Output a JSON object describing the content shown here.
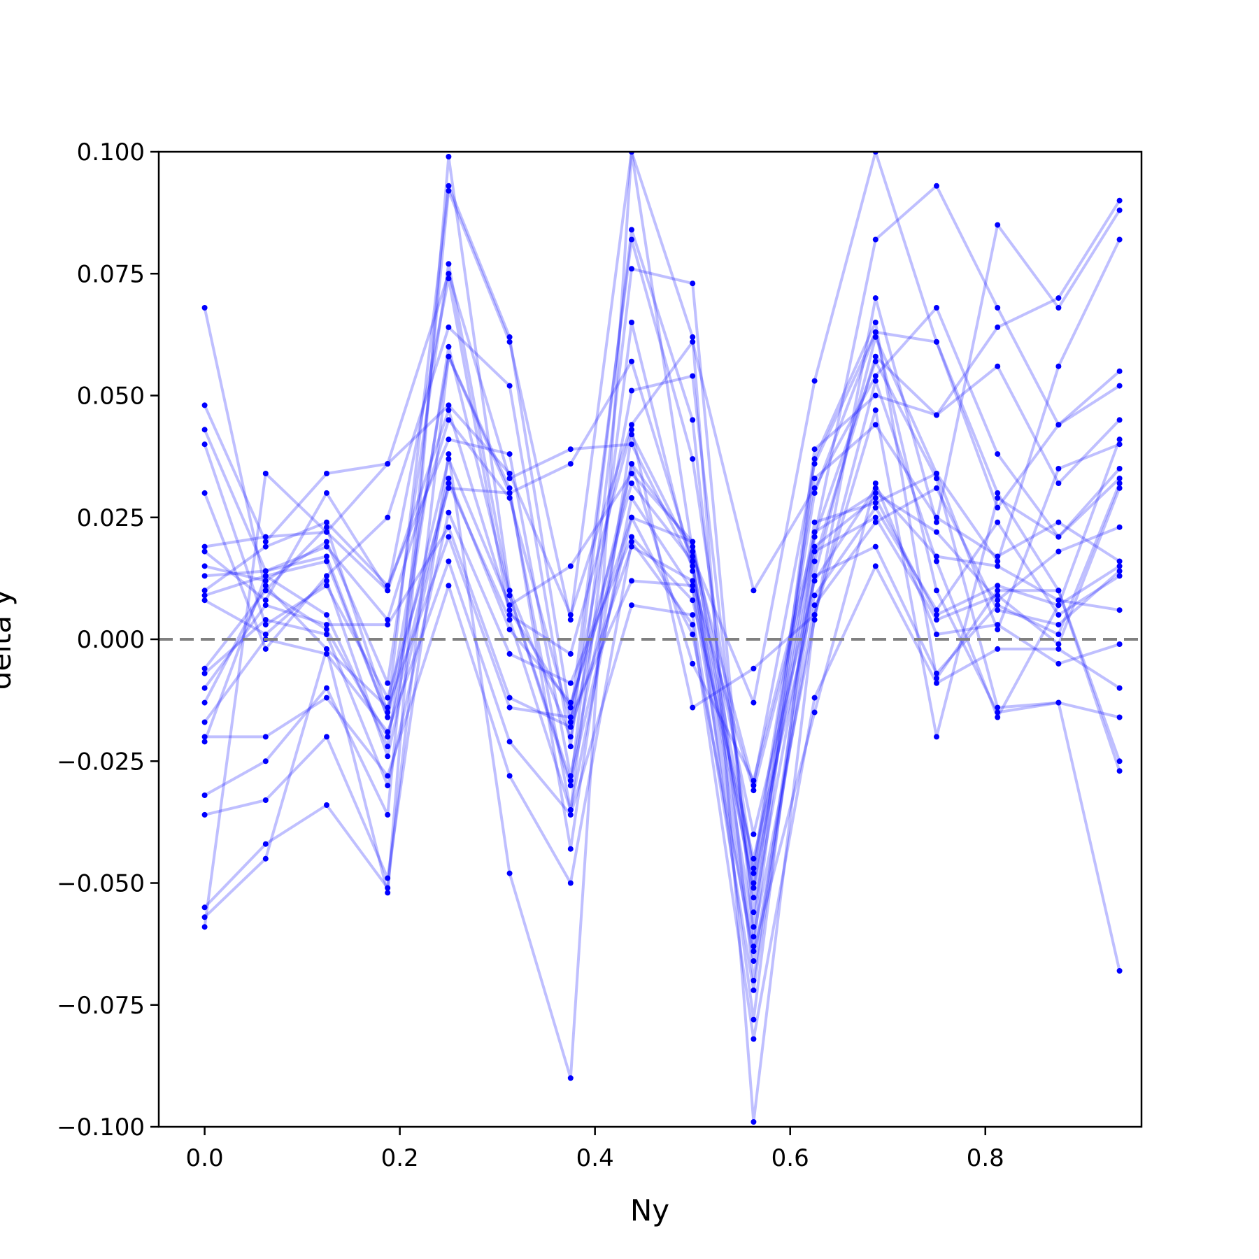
{
  "chart_data": {
    "type": "line",
    "xlabel": "Ny",
    "ylabel": "delta y",
    "xlim": [
      -0.047,
      0.96
    ],
    "ylim": [
      -0.1,
      0.1
    ],
    "x_ticks": [
      0.0,
      0.2,
      0.4,
      0.6,
      0.8
    ],
    "x_tick_labels": [
      "0.0",
      "0.2",
      "0.4",
      "0.6",
      "0.8"
    ],
    "y_ticks": [
      -0.1,
      -0.075,
      -0.05,
      -0.025,
      0.0,
      0.025,
      0.05,
      0.075,
      0.1
    ],
    "y_tick_labels": [
      "−0.100",
      "−0.075",
      "−0.050",
      "−0.025",
      "0.000",
      "0.025",
      "0.050",
      "0.075",
      "0.100"
    ],
    "reference_line": {
      "y": 0.0,
      "style": "dashed",
      "color": "#808080"
    },
    "grid": false,
    "legend": "none",
    "line_color": "#0000ff",
    "x": [
      0.0,
      0.0625,
      0.125,
      0.1875,
      0.25,
      0.3125,
      0.375,
      0.4375,
      0.5,
      0.5625,
      0.625,
      0.6875,
      0.75,
      0.8125,
      0.875,
      0.9375
    ],
    "series": [
      {
        "values": [
          0.068,
          0.01,
          0.023,
          -0.015,
          0.093,
          0.062,
          -0.016,
          0.082,
          0.037,
          -0.048,
          0.03,
          0.063,
          0.061,
          0.027,
          0.044,
          0.052
        ]
      },
      {
        "values": [
          0.048,
          0.02,
          0.034,
          0.036,
          0.075,
          0.033,
          0.039,
          0.04,
          0.015,
          -0.05,
          0.024,
          0.028,
          0.034,
          0.002,
          0.035,
          0.04
        ]
      },
      {
        "values": [
          0.043,
          0.014,
          0.017,
          -0.016,
          0.058,
          0.03,
          -0.035,
          0.065,
          0.014,
          -0.063,
          0.037,
          0.065,
          -0.008,
          0.01,
          0.01,
          -0.027
        ]
      },
      {
        "values": [
          0.04,
          0.003,
          0.011,
          -0.012,
          0.031,
          0.03,
          0.036,
          0.057,
          0.016,
          -0.078,
          0.021,
          0.082,
          0.093,
          0.068,
          0.044,
          0.055
        ]
      },
      {
        "values": [
          0.03,
          -0.002,
          0.013,
          0.025,
          0.064,
          0.052,
          -0.022,
          0.084,
          0.045,
          -0.07,
          0.016,
          0.058,
          0.046,
          0.056,
          0.032,
          0.045
        ]
      },
      {
        "values": [
          0.019,
          0.021,
          0.022,
          0.036,
          0.048,
          0.034,
          0.005,
          0.044,
          0.061,
          0.01,
          0.031,
          0.054,
          0.068,
          0.038,
          0.021,
          0.035
        ]
      },
      {
        "values": [
          0.018,
          0.008,
          0.03,
          0.01,
          0.047,
          0.006,
          -0.014,
          0.032,
          0.016,
          -0.059,
          0.039,
          0.05,
          0.046,
          0.064,
          0.07,
          0.09
        ]
      },
      {
        "values": [
          0.015,
          0.012,
          0.02,
          -0.009,
          0.077,
          0.009,
          -0.03,
          0.076,
          0.073,
          -0.061,
          0.004,
          0.07,
          0.024,
          0.085,
          0.068,
          0.088
        ]
      },
      {
        "values": [
          0.013,
          0.014,
          0.019,
          0.004,
          0.045,
          0.029,
          -0.017,
          0.051,
          0.054,
          -0.056,
          0.013,
          0.062,
          0.034,
          0.016,
          0.056,
          0.082
        ]
      },
      {
        "values": [
          0.01,
          0.019,
          0.024,
          0.011,
          0.041,
          0.038,
          -0.028,
          0.036,
          0.019,
          -0.047,
          0.033,
          0.044,
          0.025,
          0.017,
          0.024,
          0.016
        ]
      },
      {
        "values": [
          0.009,
          0.013,
          0.016,
          -0.016,
          0.037,
          0.007,
          0.015,
          0.034,
          0.02,
          -0.053,
          0.022,
          0.03,
          0.022,
          0.008,
          0.018,
          0.023
        ]
      },
      {
        "values": [
          0.008,
          0.001,
          0.012,
          -0.024,
          0.032,
          0.004,
          -0.035,
          0.029,
          0.01,
          -0.066,
          0.007,
          0.024,
          0.031,
          0.006,
          0.003,
          0.014
        ]
      },
      {
        "values": [
          -0.006,
          0.01,
          0.002,
          -0.02,
          0.033,
          0.002,
          -0.013,
          0.025,
          0.02,
          -0.04,
          0.012,
          0.031,
          0.017,
          0.015,
          0.008,
          0.006
        ]
      },
      {
        "values": [
          -0.007,
          0.004,
          0.001,
          -0.03,
          0.026,
          -0.003,
          -0.009,
          0.021,
          0.008,
          -0.045,
          0.009,
          0.027,
          0.006,
          0.024,
          0.005,
          0.013
        ]
      },
      {
        "values": [
          -0.01,
          0.007,
          0.003,
          0.003,
          0.023,
          -0.012,
          -0.018,
          0.019,
          0.012,
          -0.031,
          0.019,
          0.029,
          0.005,
          0.011,
          0.007,
          0.015
        ]
      },
      {
        "values": [
          -0.013,
          0.011,
          -0.002,
          -0.014,
          0.021,
          -0.014,
          -0.016,
          0.012,
          0.011,
          -0.051,
          0.018,
          0.025,
          0.004,
          0.009,
          -0.001,
          0.031
        ]
      },
      {
        "values": [
          -0.017,
          0.0,
          -0.003,
          -0.019,
          0.016,
          -0.021,
          -0.036,
          0.007,
          0.005,
          -0.072,
          0.013,
          0.019,
          -0.007,
          0.007,
          0.001,
          0.032
        ]
      },
      {
        "values": [
          -0.02,
          -0.02,
          -0.012,
          -0.028,
          0.011,
          -0.028,
          -0.05,
          0.02,
          0.003,
          -0.082,
          -0.012,
          0.015,
          -0.009,
          -0.002,
          -0.002,
          -0.01
        ]
      },
      {
        "values": [
          -0.021,
          0.013,
          0.005,
          -0.022,
          0.06,
          0.009,
          -0.029,
          0.025,
          0.001,
          -0.064,
          -0.015,
          0.032,
          0.001,
          0.003,
          -0.005,
          -0.001
        ]
      },
      {
        "values": [
          -0.032,
          -0.025,
          -0.01,
          -0.036,
          0.092,
          0.061,
          0.004,
          0.1,
          0.062,
          -0.099,
          0.005,
          0.047,
          -0.02,
          0.029,
          0.021,
          0.033
        ]
      },
      {
        "values": [
          -0.036,
          -0.033,
          -0.02,
          -0.049,
          0.038,
          -0.048,
          -0.09,
          0.1,
          0.018,
          -0.03,
          0.036,
          0.063,
          0.01,
          -0.015,
          -0.013,
          -0.068
        ]
      },
      {
        "values": [
          -0.055,
          -0.042,
          -0.034,
          -0.051,
          0.058,
          0.031,
          -0.043,
          0.042,
          0.017,
          -0.013,
          0.053,
          0.1,
          0.061,
          0.03,
          0.01,
          -0.025
        ]
      },
      {
        "values": [
          -0.057,
          -0.045,
          -0.002,
          -0.052,
          0.099,
          0.01,
          -0.02,
          0.036,
          -0.005,
          -0.029,
          0.021,
          0.057,
          0.033,
          -0.014,
          -0.013,
          -0.016
        ]
      },
      {
        "values": [
          -0.059,
          0.034,
          0.022,
          0.01,
          0.074,
          0.005,
          -0.003,
          0.043,
          -0.014,
          -0.006,
          0.005,
          0.053,
          0.016,
          -0.016,
          0.007,
          0.041
        ]
      }
    ]
  }
}
